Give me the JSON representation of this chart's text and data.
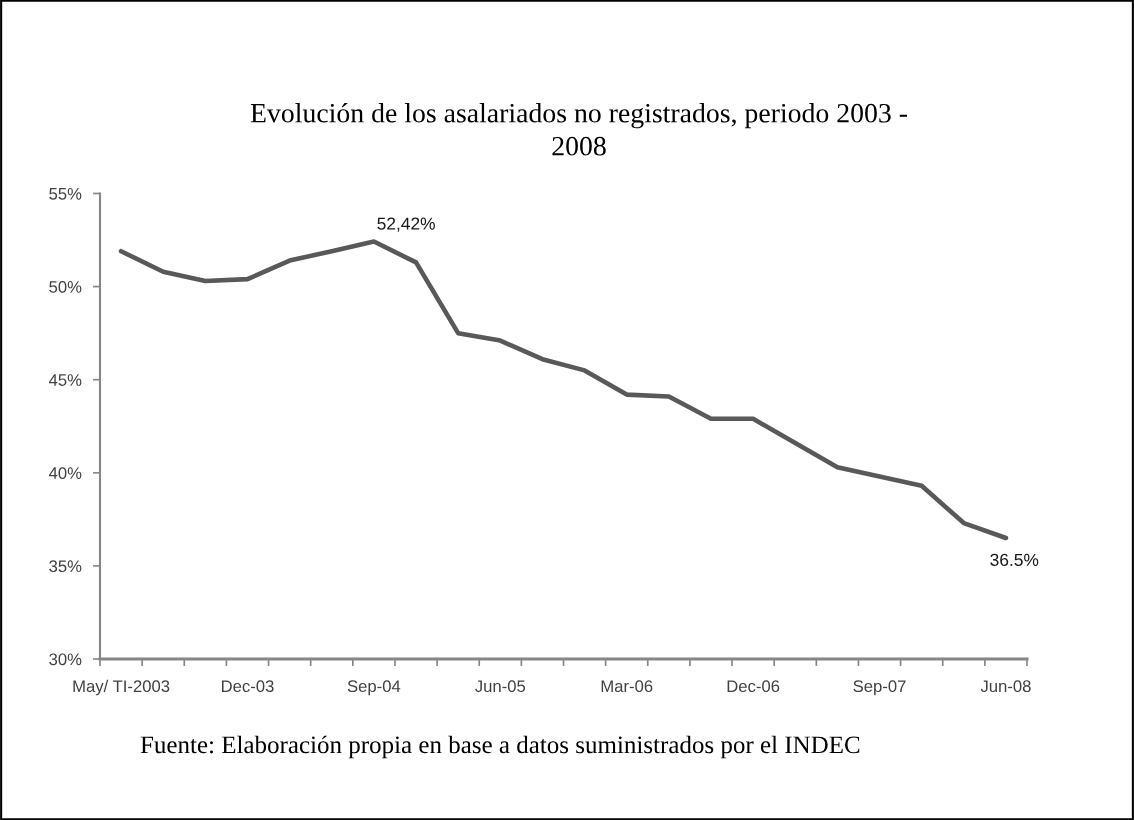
{
  "chart_data": {
    "type": "line",
    "title": "Evolución de los asalariados no registrados, periodo 2003 -\n2008",
    "annotations": [
      "Fuente: Elaboración propia en base a datos suministrados por el INDEC"
    ],
    "categories": [
      "May/ TI-2003",
      null,
      null,
      "Dec-03",
      null,
      null,
      "Sep-04",
      null,
      null,
      "Jun-05",
      null,
      null,
      "Mar-06",
      null,
      null,
      "Dec-06",
      null,
      null,
      "Sep-07",
      null,
      null,
      "Jun-08"
    ],
    "values": [
      51.9,
      50.8,
      50.3,
      50.4,
      51.4,
      51.9,
      52.42,
      51.3,
      47.5,
      47.1,
      46.1,
      45.5,
      44.2,
      44.1,
      42.9,
      42.9,
      41.6,
      40.3,
      39.8,
      39.3,
      37.3,
      36.5
    ],
    "value_labels": [
      null,
      null,
      null,
      null,
      null,
      null,
      "52,42%",
      null,
      null,
      null,
      null,
      null,
      null,
      null,
      null,
      null,
      null,
      null,
      null,
      null,
      null,
      "36.5%"
    ],
    "color": "#595959",
    "line_style": "solid",
    "ylim": [
      30,
      55
    ],
    "yticks": [
      {
        "value": 30,
        "label": "30%"
      },
      {
        "value": 35,
        "label": "35%"
      },
      {
        "value": 40,
        "label": "40%"
      },
      {
        "value": 45,
        "label": "45%"
      },
      {
        "value": 50,
        "label": "50%"
      },
      {
        "value": 55,
        "label": "55%"
      }
    ]
  }
}
